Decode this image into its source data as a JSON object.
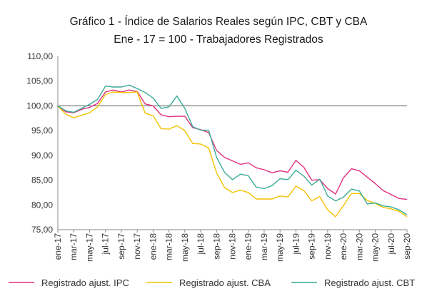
{
  "chart_data": {
    "type": "line",
    "title": "Gráfico 1 - Índice de Salarios Reales según IPC, CBT y CBA",
    "subtitle": "Ene - 17 = 100 - Trabajadores Registrados",
    "xlabel": "",
    "ylabel": "",
    "ylim": [
      75,
      110
    ],
    "yticks": [
      "110,00",
      "105,00",
      "100,00",
      "95,00",
      "90,00",
      "85,00",
      "80,00",
      "75,00"
    ],
    "reference_line": 100,
    "grid": false,
    "legend_position": "bottom",
    "x": [
      "ene-17",
      "feb-17",
      "mar-17",
      "abr-17",
      "may-17",
      "jun-17",
      "jul-17",
      "ago-17",
      "sep-17",
      "oct-17",
      "nov-17",
      "dic-17",
      "ene-18",
      "feb-18",
      "mar-18",
      "abr-18",
      "may-18",
      "jun-18",
      "jul-18",
      "ago-18",
      "sep-18",
      "oct-18",
      "nov-18",
      "dic-18",
      "ene-19",
      "feb-19",
      "mar-19",
      "abr-19",
      "may-19",
      "jun-19",
      "jul-19",
      "ago-19",
      "sep-19",
      "oct-19",
      "nov-19",
      "dic-19",
      "ene-20",
      "feb-20",
      "mar-20",
      "abr-20",
      "may-20",
      "jun-20",
      "jul-20",
      "ago-20",
      "sep-20"
    ],
    "x_tick_labels": [
      "ene-17",
      "mar-17",
      "may-17",
      "jul-17",
      "sep-17",
      "nov-17",
      "ene-18",
      "mar-18",
      "may-18",
      "jul-18",
      "sep-18",
      "nov-18",
      "ene-19",
      "mar-19",
      "may-19",
      "jul-19",
      "sep-19",
      "nov-19",
      "ene-20",
      "mar-20",
      "may-20",
      "jul-20",
      "sep-20"
    ],
    "series": [
      {
        "name": "Registrado ajust. IPC",
        "color": "#e0307f",
        "values": [
          100.0,
          98.8,
          98.6,
          99.3,
          99.7,
          100.5,
          102.8,
          103.2,
          102.8,
          103.2,
          102.9,
          100.4,
          100.0,
          98.2,
          97.8,
          97.9,
          97.9,
          95.6,
          95.2,
          94.6,
          91.0,
          89.6,
          88.9,
          88.2,
          88.5,
          87.5,
          87.1,
          86.5,
          86.9,
          86.6,
          89.0,
          87.6,
          85.0,
          85.1,
          83.3,
          82.2,
          85.5,
          87.3,
          86.9,
          85.6,
          84.3,
          82.9,
          82.1,
          81.3,
          81.1
        ]
      },
      {
        "name": "Registrado ajust. CBA",
        "color": "#f2c200",
        "values": [
          100.0,
          98.3,
          97.6,
          98.1,
          98.6,
          99.8,
          102.3,
          102.8,
          102.7,
          102.7,
          102.8,
          98.5,
          98.0,
          95.4,
          95.3,
          96.0,
          95.0,
          92.4,
          92.3,
          91.5,
          86.5,
          83.5,
          82.5,
          83.0,
          82.5,
          81.2,
          81.2,
          81.2,
          81.8,
          81.6,
          83.8,
          82.9,
          80.8,
          81.7,
          79.0,
          77.6,
          79.9,
          82.3,
          82.3,
          80.9,
          80.3,
          79.5,
          79.2,
          78.7,
          77.6
        ]
      },
      {
        "name": "Registrado ajust. CBT",
        "color": "#3aab96",
        "values": [
          100.0,
          99.0,
          98.7,
          99.5,
          100.3,
          101.3,
          104.0,
          103.8,
          103.8,
          104.2,
          103.5,
          102.7,
          101.6,
          99.5,
          99.8,
          102.0,
          99.5,
          95.8,
          95.1,
          95.1,
          89.6,
          86.6,
          85.1,
          86.2,
          85.9,
          83.6,
          83.3,
          83.9,
          85.3,
          85.1,
          87.0,
          85.8,
          84.0,
          85.2,
          81.8,
          80.8,
          81.6,
          83.2,
          82.8,
          80.2,
          80.4,
          79.8,
          79.6,
          79.0,
          78.0
        ]
      }
    ]
  }
}
